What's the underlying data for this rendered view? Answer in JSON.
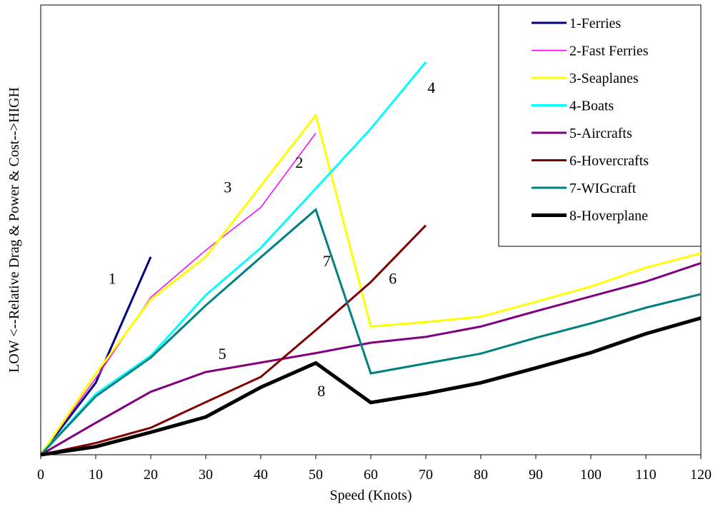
{
  "chart_data": {
    "type": "line",
    "xlabel": "Speed (Knots)",
    "ylabel": "LOW <--Relative Drag & Power & Cost-->HIGH",
    "xlim": [
      0,
      120
    ],
    "ylim": [
      0,
      10
    ],
    "x_ticks": [
      "0",
      "10",
      "20",
      "30",
      "40",
      "50",
      "60",
      "70",
      "80",
      "90",
      "100",
      "110",
      "120"
    ],
    "y_ticks_shown": false,
    "grid": false,
    "legend_position": "top-right",
    "series": [
      {
        "name": "1-Ferries",
        "label": "1",
        "color": "#000080",
        "width": 3,
        "x": [
          0,
          10,
          20
        ],
        "y": [
          0,
          1.6,
          4.4
        ],
        "label_at": [
          13,
          3.8
        ]
      },
      {
        "name": "2-Fast Ferries",
        "label": "2",
        "color": "#ff00ff",
        "width": 1.5,
        "x": [
          0,
          10,
          20,
          30,
          40,
          50
        ],
        "y": [
          0,
          1.7,
          3.5,
          4.55,
          5.5,
          7.15
        ],
        "label_at": [
          47,
          6.38
        ]
      },
      {
        "name": "3-Seaplanes",
        "label": "3",
        "color": "#ffff00",
        "width": 3,
        "x": [
          0,
          10,
          20,
          30,
          40,
          50,
          60,
          70,
          80,
          90,
          100,
          110,
          120
        ],
        "y": [
          0,
          1.8,
          3.45,
          4.4,
          5.98,
          7.55,
          2.85,
          2.95,
          3.07,
          3.4,
          3.74,
          4.16,
          4.48
        ],
        "label_at": [
          34,
          5.83
        ]
      },
      {
        "name": "4-Boats",
        "label": "4",
        "color": "#00ffff",
        "width": 3,
        "x": [
          0,
          10,
          20,
          30,
          40,
          50,
          60,
          70
        ],
        "y": [
          0,
          1.35,
          2.2,
          3.55,
          4.6,
          5.92,
          7.25,
          8.73
        ],
        "label_at": [
          71,
          8.05
        ]
      },
      {
        "name": "5-Aircrafts",
        "label": "5",
        "color": "#800080",
        "width": 3,
        "x": [
          0,
          10,
          20,
          30,
          40,
          50,
          60,
          70,
          80,
          90,
          100,
          110,
          120
        ],
        "y": [
          0,
          0.71,
          1.4,
          1.84,
          2.05,
          2.26,
          2.49,
          2.62,
          2.85,
          3.19,
          3.52,
          3.85,
          4.26
        ],
        "label_at": [
          33,
          2.13
        ]
      },
      {
        "name": "6-Hovercrafts",
        "label": "6",
        "color": "#800000",
        "width": 3,
        "x": [
          0,
          10,
          20,
          30,
          40,
          50,
          60,
          70
        ],
        "y": [
          0,
          0.26,
          0.6,
          1.17,
          1.73,
          2.77,
          3.84,
          5.1
        ],
        "label_at": [
          64,
          3.8
        ]
      },
      {
        "name": "7-WIGcraft",
        "label": "7",
        "color": "#008080",
        "width": 3,
        "x": [
          0,
          10,
          20,
          30,
          40,
          50,
          60,
          70,
          80,
          90,
          100,
          110,
          120
        ],
        "y": [
          0,
          1.3,
          2.16,
          3.32,
          4.39,
          5.45,
          1.81,
          2.03,
          2.25,
          2.6,
          2.92,
          3.27,
          3.57
        ],
        "label_at": [
          52,
          4.19
        ]
      },
      {
        "name": "8-Hoverplane",
        "label": "8",
        "color": "#000000",
        "width": 5,
        "x": [
          0,
          10,
          20,
          30,
          40,
          50,
          60,
          70,
          80,
          90,
          100,
          110,
          120
        ],
        "y": [
          0,
          0.18,
          0.5,
          0.84,
          1.5,
          2.04,
          1.16,
          1.36,
          1.6,
          1.93,
          2.27,
          2.69,
          3.04
        ],
        "label_at": [
          51,
          1.3
        ]
      }
    ]
  }
}
